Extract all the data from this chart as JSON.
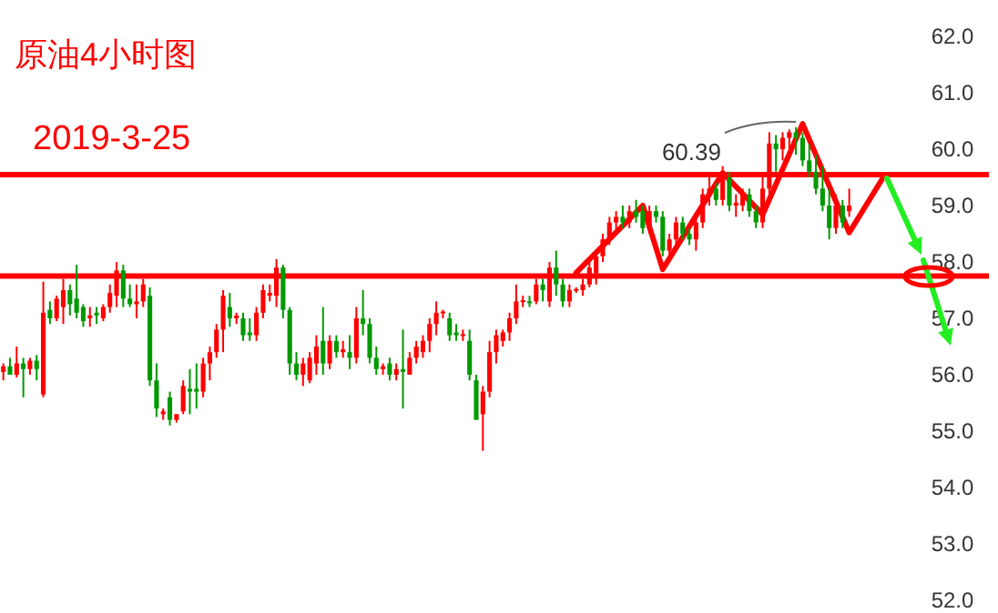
{
  "chart_data": {
    "type": "candlestick",
    "title": "原油4小时图",
    "subtitle": "2019-3-25",
    "categories": [
      null,
      null,
      null,
      null,
      null,
      null,
      null,
      null,
      null,
      null,
      null,
      null,
      null,
      null,
      null,
      null,
      null,
      null,
      null,
      null,
      null,
      null,
      null,
      null,
      null,
      null,
      null,
      null,
      null,
      null,
      null,
      null,
      null,
      null,
      null,
      null,
      null,
      null,
      null,
      null,
      null,
      null,
      null,
      null,
      null,
      null,
      null,
      null,
      null,
      null,
      null,
      null,
      null,
      null,
      null,
      null,
      null,
      null,
      null,
      null,
      null,
      null,
      null,
      null,
      null,
      null,
      null,
      null,
      null,
      null,
      null,
      null,
      null,
      null,
      null,
      null,
      null,
      null,
      null,
      null,
      null,
      null,
      null,
      null,
      null,
      null,
      null,
      null,
      null,
      null,
      null,
      null,
      null,
      null,
      null,
      null,
      null,
      null,
      null,
      null,
      null,
      null,
      null,
      null,
      null,
      null,
      null,
      null,
      null,
      null,
      null,
      null,
      null,
      null,
      null,
      null,
      null,
      null,
      null,
      null,
      null,
      null,
      null,
      null,
      null,
      null,
      null,
      null,
      null,
      null,
      null,
      null,
      null,
      null,
      null,
      null,
      null,
      null,
      null,
      null,
      null,
      null,
      null
    ],
    "ohlc": [
      [
        56.05,
        56.2,
        55.9,
        56.15
      ],
      [
        56.15,
        56.3,
        56.0,
        56.0
      ],
      [
        56.0,
        56.5,
        55.95,
        56.2
      ],
      [
        56.2,
        56.3,
        55.6,
        56.1
      ],
      [
        56.1,
        56.3,
        56.0,
        56.25
      ],
      [
        56.25,
        56.35,
        55.9,
        56.1
      ],
      [
        55.65,
        57.65,
        55.6,
        57.1
      ],
      [
        57.15,
        57.3,
        56.9,
        57.0
      ],
      [
        57.0,
        57.4,
        56.95,
        57.35
      ],
      [
        57.2,
        57.7,
        56.9,
        57.5
      ],
      [
        57.5,
        57.6,
        57.05,
        57.25
      ],
      [
        57.35,
        57.95,
        57.0,
        57.1
      ],
      [
        57.2,
        57.25,
        56.85,
        56.95
      ],
      [
        57.0,
        57.2,
        56.85,
        57.05
      ],
      [
        57.1,
        57.2,
        56.9,
        57.05
      ],
      [
        57.0,
        57.25,
        56.95,
        57.2
      ],
      [
        57.2,
        57.6,
        57.1,
        57.45
      ],
      [
        57.4,
        58.0,
        57.2,
        57.85
      ],
      [
        57.85,
        57.95,
        57.2,
        57.35
      ],
      [
        57.35,
        57.6,
        57.2,
        57.25
      ],
      [
        57.25,
        57.6,
        57.0,
        57.3
      ],
      [
        57.3,
        57.7,
        57.2,
        57.6
      ],
      [
        57.4,
        57.55,
        55.8,
        55.9
      ],
      [
        55.9,
        56.2,
        55.25,
        55.4
      ],
      [
        55.3,
        55.4,
        55.2,
        55.35
      ],
      [
        55.6,
        55.7,
        55.1,
        55.2
      ],
      [
        55.2,
        55.3,
        55.15,
        55.3
      ],
      [
        55.35,
        55.9,
        55.3,
        55.8
      ],
      [
        55.75,
        56.1,
        55.3,
        55.7
      ],
      [
        55.75,
        56.2,
        55.4,
        55.7
      ],
      [
        55.7,
        56.3,
        55.6,
        56.2
      ],
      [
        56.2,
        56.5,
        55.9,
        56.4
      ],
      [
        56.4,
        56.9,
        56.3,
        56.8
      ],
      [
        56.8,
        57.5,
        56.4,
        57.4
      ],
      [
        57.2,
        57.45,
        56.85,
        57.0
      ],
      [
        57.0,
        57.1,
        56.9,
        57.05
      ],
      [
        57.0,
        57.1,
        56.6,
        56.7
      ],
      [
        56.75,
        57.0,
        56.6,
        56.7
      ],
      [
        56.7,
        57.2,
        56.6,
        57.1
      ],
      [
        57.1,
        57.6,
        57.0,
        57.5
      ],
      [
        57.4,
        57.6,
        57.3,
        57.45
      ],
      [
        57.4,
        58.05,
        57.2,
        57.9
      ],
      [
        57.9,
        57.95,
        57.0,
        57.15
      ],
      [
        57.15,
        57.2,
        56.0,
        56.2
      ],
      [
        56.2,
        56.4,
        55.9,
        56.0
      ],
      [
        56.0,
        56.3,
        55.8,
        56.2
      ],
      [
        55.9,
        56.4,
        55.85,
        56.3
      ],
      [
        56.2,
        56.7,
        56.0,
        56.5
      ],
      [
        56.6,
        57.2,
        56.0,
        56.2
      ],
      [
        56.2,
        56.7,
        56.1,
        56.6
      ],
      [
        56.6,
        56.7,
        56.3,
        56.4
      ],
      [
        56.4,
        56.6,
        56.3,
        56.45
      ],
      [
        56.4,
        56.7,
        56.1,
        56.3
      ],
      [
        56.3,
        57.2,
        56.2,
        57.0
      ],
      [
        57.0,
        57.5,
        56.7,
        56.9
      ],
      [
        56.9,
        57.0,
        56.2,
        56.3
      ],
      [
        56.3,
        56.5,
        56.0,
        56.1
      ],
      [
        56.1,
        56.2,
        56.0,
        56.15
      ],
      [
        56.2,
        56.3,
        55.9,
        56.0
      ],
      [
        56.0,
        56.2,
        55.9,
        56.1
      ],
      [
        56.1,
        56.8,
        55.4,
        56.05
      ],
      [
        56.0,
        56.4,
        56.0,
        56.3
      ],
      [
        56.3,
        56.6,
        56.2,
        56.5
      ],
      [
        56.4,
        56.7,
        56.3,
        56.6
      ],
      [
        56.6,
        57.0,
        56.4,
        56.9
      ],
      [
        56.9,
        57.3,
        56.7,
        57.1
      ],
      [
        57.1,
        57.15,
        57.0,
        57.12
      ],
      [
        57.0,
        57.1,
        56.6,
        56.7
      ],
      [
        56.75,
        56.9,
        56.6,
        56.7
      ],
      [
        56.7,
        56.8,
        56.6,
        56.72
      ],
      [
        56.6,
        56.8,
        55.9,
        56.0
      ],
      [
        55.9,
        56.0,
        55.2,
        55.2
      ],
      [
        55.3,
        55.8,
        54.65,
        55.7
      ],
      [
        55.7,
        56.6,
        55.6,
        56.4
      ],
      [
        56.4,
        56.8,
        56.2,
        56.7
      ],
      [
        56.6,
        56.8,
        56.5,
        56.75
      ],
      [
        56.75,
        57.1,
        56.6,
        57.0
      ],
      [
        57.0,
        57.6,
        56.9,
        57.3
      ],
      [
        57.3,
        57.4,
        57.2,
        57.32
      ],
      [
        57.3,
        57.4,
        57.2,
        57.28
      ],
      [
        57.3,
        57.7,
        57.25,
        57.6
      ],
      [
        57.6,
        57.7,
        57.3,
        57.5
      ],
      [
        57.3,
        58.0,
        57.2,
        57.9
      ],
      [
        57.9,
        58.2,
        57.4,
        57.6
      ],
      [
        57.6,
        57.7,
        57.2,
        57.3
      ],
      [
        57.3,
        57.6,
        57.2,
        57.5
      ],
      [
        57.5,
        57.55,
        57.45,
        57.52
      ],
      [
        57.5,
        57.7,
        57.4,
        57.6
      ],
      [
        57.6,
        58.0,
        57.55,
        57.9
      ],
      [
        57.8,
        58.2,
        57.6,
        58.1
      ],
      [
        58.1,
        58.5,
        58.0,
        58.4
      ],
      [
        58.4,
        58.8,
        58.3,
        58.7
      ],
      [
        58.7,
        58.9,
        58.5,
        58.8
      ],
      [
        58.8,
        59.0,
        58.6,
        58.7
      ],
      [
        58.7,
        59.0,
        58.6,
        58.9
      ],
      [
        58.9,
        59.1,
        58.7,
        58.8
      ],
      [
        58.9,
        59.0,
        58.5,
        58.6
      ],
      [
        58.6,
        59.0,
        58.5,
        58.9
      ],
      [
        58.9,
        59.0,
        58.7,
        58.8
      ],
      [
        58.8,
        58.9,
        58.1,
        58.2
      ],
      [
        58.2,
        58.5,
        58.0,
        58.4
      ],
      [
        58.4,
        58.8,
        58.3,
        58.7
      ],
      [
        58.7,
        58.8,
        58.4,
        58.5
      ],
      [
        58.5,
        58.6,
        58.3,
        58.4
      ],
      [
        58.4,
        58.8,
        58.2,
        58.7
      ],
      [
        58.7,
        59.3,
        58.6,
        59.2
      ],
      [
        59.2,
        59.5,
        59.0,
        59.3
      ],
      [
        59.3,
        59.4,
        59.0,
        59.1
      ],
      [
        59.1,
        59.7,
        59.0,
        59.5
      ],
      [
        59.5,
        59.6,
        58.9,
        59.0
      ],
      [
        59.0,
        59.2,
        58.8,
        59.05
      ],
      [
        59.0,
        59.3,
        58.9,
        59.2
      ],
      [
        59.2,
        59.3,
        58.8,
        58.9
      ],
      [
        58.9,
        59.0,
        58.6,
        58.7
      ],
      [
        58.7,
        59.5,
        58.6,
        59.3
      ],
      [
        59.3,
        60.3,
        59.2,
        60.1
      ],
      [
        60.1,
        60.25,
        59.6,
        60.0
      ],
      [
        60.0,
        60.3,
        59.8,
        60.2
      ],
      [
        60.2,
        60.35,
        60.0,
        60.3
      ],
      [
        60.3,
        60.39,
        59.9,
        60.2
      ],
      [
        60.2,
        60.3,
        59.7,
        59.8
      ],
      [
        59.8,
        60.1,
        59.5,
        59.6
      ],
      [
        59.6,
        59.9,
        59.2,
        59.3
      ],
      [
        59.3,
        59.7,
        58.9,
        59.0
      ],
      [
        59.0,
        59.3,
        58.4,
        58.6
      ],
      [
        58.6,
        59.2,
        58.5,
        59.0
      ],
      [
        59.0,
        59.1,
        58.6,
        58.7
      ],
      [
        58.9,
        59.3,
        58.8,
        59.0
      ],
      null,
      null,
      null,
      null,
      null,
      null,
      null,
      null,
      null,
      null,
      null,
      null,
      null,
      null,
      null
    ],
    "series": [
      {
        "type": "line",
        "color": "#ff0000",
        "values": [
          null,
          null,
          null,
          null,
          null,
          null,
          null,
          null,
          null,
          null,
          null,
          null,
          null,
          null,
          null,
          null,
          null,
          null,
          null,
          null,
          null,
          null,
          null,
          null,
          null,
          null,
          null,
          null,
          null,
          null,
          null,
          null,
          null,
          null,
          null,
          null,
          null,
          null,
          null,
          null,
          null,
          null,
          null,
          null,
          null,
          null,
          null,
          null,
          null,
          null,
          null,
          null,
          null,
          null,
          null,
          null,
          null,
          null,
          null,
          null,
          null,
          null,
          null,
          null,
          null,
          null,
          null,
          null,
          null,
          null,
          null,
          null,
          null,
          null,
          null,
          null,
          null,
          null,
          null,
          null,
          null,
          null,
          null,
          null,
          null,
          null,
          57.81,
          null,
          null,
          null,
          null,
          null,
          null,
          null,
          null,
          null,
          59.0,
          null,
          null,
          57.87,
          null,
          null,
          null,
          null,
          null,
          null,
          null,
          null,
          59.58,
          null,
          null,
          null,
          null,
          null,
          58.84,
          null,
          null,
          null,
          null,
          null,
          60.45,
          null,
          null,
          null,
          null,
          null,
          null,
          58.52,
          null,
          null,
          null,
          null,
          59.48,
          null,
          null,
          null,
          null,
          null,
          null,
          null,
          null,
          null,
          null
        ]
      }
    ],
    "annotations": [
      "60.39"
    ],
    "ref_lines": [
      {
        "axis": "y",
        "value": 59.55,
        "color": "#ff0000"
      },
      {
        "axis": "y",
        "value": 57.75,
        "color": "#ff0000"
      }
    ],
    "ylim": [
      52,
      62
    ],
    "yticks": [
      {
        "value": 52,
        "label": "52.0"
      },
      {
        "value": 53,
        "label": "53.0"
      },
      {
        "value": 54,
        "label": "54.0"
      },
      {
        "value": 55,
        "label": "55.0"
      },
      {
        "value": 56,
        "label": "56.0"
      },
      {
        "value": 57,
        "label": "57.0"
      },
      {
        "value": 58,
        "label": "58.0"
      },
      {
        "value": 59,
        "label": "59.0"
      },
      {
        "value": 60,
        "label": "60.0"
      },
      {
        "value": 61,
        "label": "61.0"
      },
      {
        "value": 62,
        "label": "62.0"
      }
    ],
    "tick_labels": "y"
  }
}
